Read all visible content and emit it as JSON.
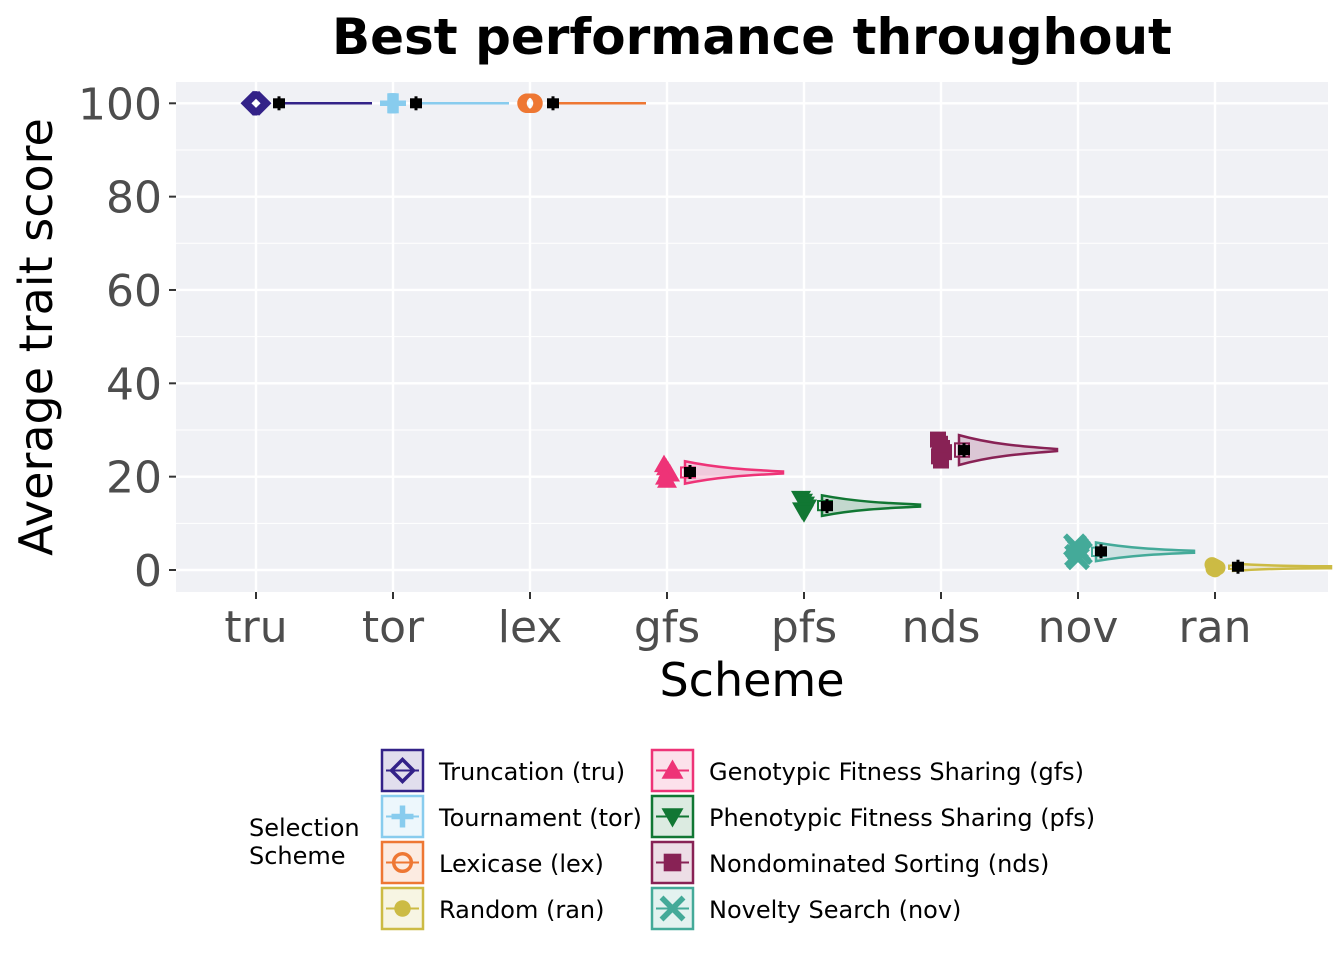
{
  "chart_data": {
    "type": "violin",
    "title": "Best performance throughout",
    "xlabel": "Scheme",
    "ylabel": "Average trait score",
    "ylim": [
      -5,
      104.5
    ],
    "yticks": [
      "0",
      "20",
      "40",
      "60",
      "80",
      "100"
    ],
    "categories": [
      "tru",
      "tor",
      "lex",
      "gfs",
      "pfs",
      "nds",
      "nov",
      "ran"
    ],
    "series": [
      {
        "key": "tru",
        "name": "Truncation (tru)",
        "color": "#332288",
        "marker": "diamond",
        "median": 100,
        "mean": 100
      },
      {
        "key": "tor",
        "name": "Tournament (tor)",
        "color": "#88CCEE",
        "marker": "plus",
        "median": 100,
        "mean": 100
      },
      {
        "key": "lex",
        "name": "Lexicase (lex)",
        "color": "#EE7733",
        "marker": "circle-open",
        "median": 100,
        "mean": 100
      },
      {
        "key": "gfs",
        "name": "Genotypic Fitness Sharing (gfs)",
        "color": "#EE3377",
        "marker": "triangle-up",
        "median": 20.9,
        "mean": 21
      },
      {
        "key": "pfs",
        "name": "Phenotypic Fitness Sharing (pfs)",
        "color": "#117733",
        "marker": "triangle-down",
        "median": 13.8,
        "mean": 13.7
      },
      {
        "key": "nds",
        "name": "Nondominated Sorting (nds)",
        "color": "#882255",
        "marker": "square",
        "median": 25.7,
        "mean": 25.7
      },
      {
        "key": "nov",
        "name": "Novelty Search (nov)",
        "color": "#44AA99",
        "marker": "x",
        "median": 3.9,
        "mean": 4.0
      },
      {
        "key": "ran",
        "name": "Random (ran)",
        "color": "#CCBB44",
        "marker": "circle",
        "median": 0.6,
        "mean": 0.7
      }
    ],
    "legend": {
      "title_lines": [
        "Selection",
        "Scheme"
      ],
      "position": "bottom",
      "columns": [
        [
          "tru",
          "tor",
          "lex",
          "ran"
        ],
        [
          "gfs",
          "pfs",
          "nds",
          "nov"
        ]
      ]
    },
    "grid": true,
    "panel_background": "#F0F1F5"
  }
}
